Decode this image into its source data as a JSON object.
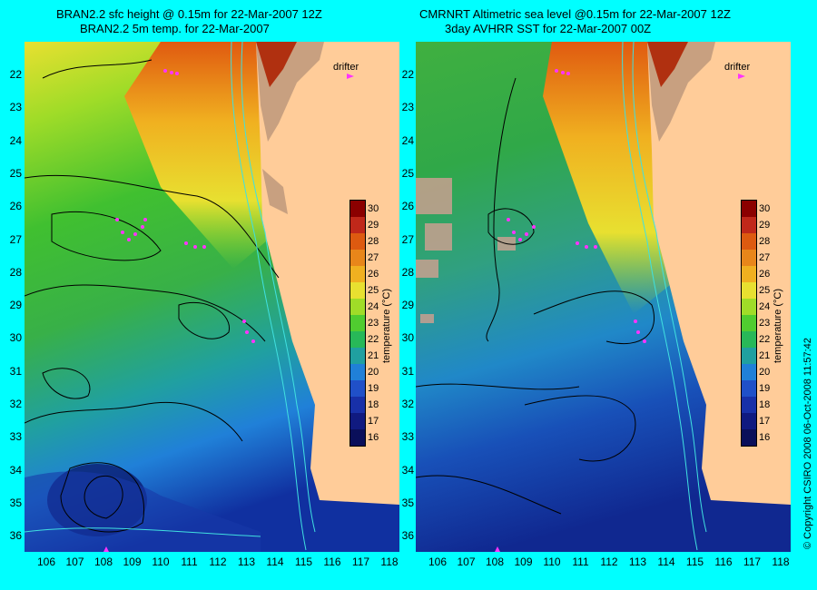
{
  "left_panel": {
    "title_line1": "BRAN2.2 sfc height @ 0.15m for 22-Mar-2007 12Z",
    "title_line2": "BRAN2.2 5m temp. for 22-Mar-2007",
    "drifter_label": "drifter"
  },
  "right_panel": {
    "title_line1": "CMRNRT Altimetric sea level  @0.15m  for 22-Mar-2007 12Z",
    "title_line2": "3day AVHRR SST for 22-Mar-2007 00Z",
    "drifter_label": "drifter"
  },
  "latitudes": [
    "22",
    "23",
    "24",
    "25",
    "26",
    "27",
    "28",
    "29",
    "30",
    "31",
    "32",
    "33",
    "34",
    "35",
    "36"
  ],
  "longitudes": [
    "106",
    "107",
    "108",
    "109",
    "110",
    "111",
    "112",
    "113",
    "114",
    "115",
    "116",
    "117",
    "118"
  ],
  "colorbar": {
    "title": "temperature (°C)",
    "ticks": [
      "30",
      "29",
      "28",
      "27",
      "26",
      "25",
      "24",
      "23",
      "22",
      "21",
      "20",
      "19",
      "18",
      "17",
      "16"
    ],
    "colors": [
      "#8b0000",
      "#c0281a",
      "#dd5a10",
      "#e8861a",
      "#f0b020",
      "#e8e030",
      "#a0dc28",
      "#50cc30",
      "#28b858",
      "#20a0a0",
      "#2080d8",
      "#2050c8",
      "#1830a8",
      "#101a80",
      "#0a0f5a"
    ]
  },
  "map_colors": {
    "land": "#ffcc99",
    "highland": "#c8a080",
    "drifter": "#ff33ff",
    "background": "#00ffff"
  },
  "copyright": "© Copyright CSIRO 2008    06-Oct-2008 11:57:42"
}
